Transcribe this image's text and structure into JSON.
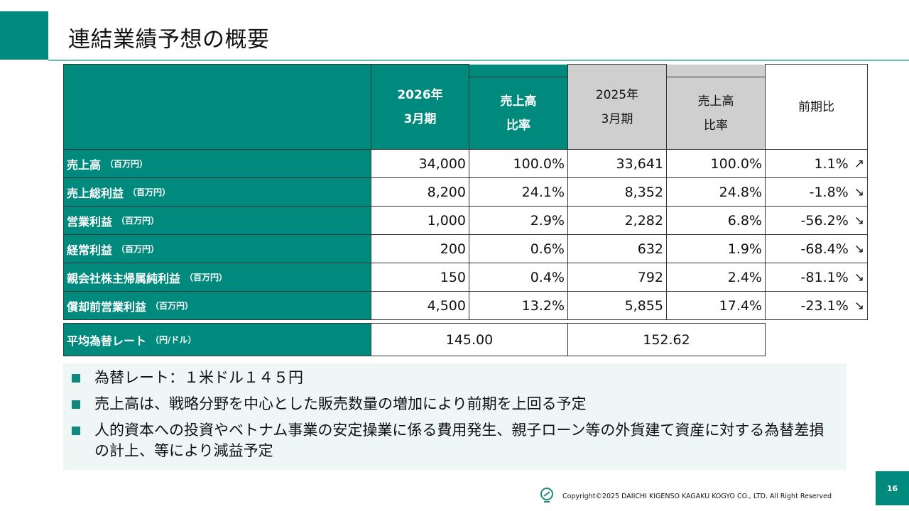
{
  "slide": {
    "title": "連結業績予想の概要",
    "page_number": "16",
    "copyright": "Copyright©2025 DAIICHI KIGENSO KAGAKU KOGYO CO., LTD. All Right Reserved"
  },
  "table": {
    "headers": {
      "current_period": [
        "2026年",
        "3月期"
      ],
      "current_ratio": [
        "売上高",
        "比率"
      ],
      "prior_period": [
        "2025年",
        "3月期"
      ],
      "prior_ratio": [
        "売上高",
        "比率"
      ],
      "yoy": "前期比"
    },
    "rows": [
      {
        "label": "売上高",
        "unit": "（百万円）",
        "cur": "34,000",
        "cur_ratio": "100.0%",
        "prev": "33,641",
        "prev_ratio": "100.0%",
        "yoy": "1.1%",
        "trend": "↗"
      },
      {
        "label": "売上総利益",
        "unit": "（百万円）",
        "cur": "8,200",
        "cur_ratio": "24.1%",
        "prev": "8,352",
        "prev_ratio": "24.8%",
        "yoy": "-1.8%",
        "trend": "↘"
      },
      {
        "label": "営業利益",
        "unit": "（百万円）",
        "cur": "1,000",
        "cur_ratio": "2.9%",
        "prev": "2,282",
        "prev_ratio": "6.8%",
        "yoy": "-56.2%",
        "trend": "↘"
      },
      {
        "label": "経常利益",
        "unit": "（百万円）",
        "cur": "200",
        "cur_ratio": "0.6%",
        "prev": "632",
        "prev_ratio": "1.9%",
        "yoy": "-68.4%",
        "trend": "↘"
      },
      {
        "label": "親会社株主帰属純利益",
        "unit": "（百万円）",
        "cur": "150",
        "cur_ratio": "0.4%",
        "prev": "792",
        "prev_ratio": "2.4%",
        "yoy": "-81.1%",
        "trend": "↘"
      },
      {
        "label": "償却前営業利益",
        "unit": "（百万円）",
        "cur": "4,500",
        "cur_ratio": "13.2%",
        "prev": "5,855",
        "prev_ratio": "17.4%",
        "yoy": "-23.1%",
        "trend": "↘"
      }
    ],
    "fx": {
      "label": "平均為替レート",
      "unit": "（円/ドル）",
      "cur": "145.00",
      "prev": "152.62"
    }
  },
  "notes": [
    "為替レート：１米ドル１４５円",
    "売上高は、戦略分野を中心とした販売数量の増加により前期を上回る予定",
    "人的資本への投資やベトナム事業の安定操業に係る費用発生、親子ローン等の外貨建て資産に対する為替差損の計上、等により減益予定"
  ],
  "colors": {
    "accent": "#008a7e",
    "header_grey": "#cfcfcf",
    "notes_bg": "#eef7f6"
  }
}
